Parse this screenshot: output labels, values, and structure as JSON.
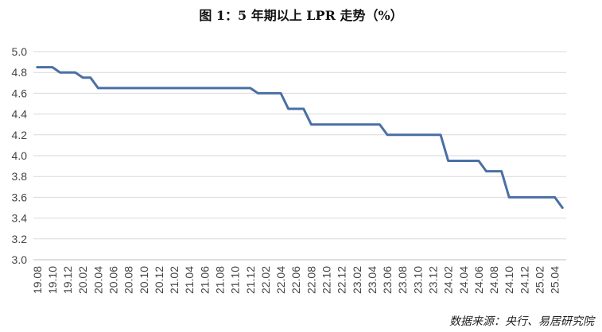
{
  "title": "图 1：5 年期以上 LPR 走势（%）",
  "source": "数据来源：央行、易居研究院",
  "colors": {
    "line": "#4A6FA5",
    "grid": "#D9D9D9",
    "axis": "#BFBFBF"
  },
  "chart_data": {
    "type": "line",
    "title": "图 1：5 年期以上 LPR 走势（%）",
    "xlabel": "",
    "ylabel": "",
    "ylim": [
      3.0,
      5.0
    ],
    "y_ticks": [
      "3.0",
      "3.2",
      "3.4",
      "3.6",
      "3.8",
      "4.0",
      "4.2",
      "4.4",
      "4.6",
      "4.8",
      "5.0"
    ],
    "grid": true,
    "legend": "none",
    "x": [
      "19.08",
      "19.09",
      "19.10",
      "19.11",
      "19.12",
      "20.01",
      "20.02",
      "20.03",
      "20.04",
      "20.05",
      "20.06",
      "20.07",
      "20.08",
      "20.09",
      "20.10",
      "20.11",
      "20.12",
      "21.01",
      "21.02",
      "21.03",
      "21.04",
      "21.05",
      "21.06",
      "21.07",
      "21.08",
      "21.09",
      "21.10",
      "21.11",
      "21.12",
      "22.01",
      "22.02",
      "22.03",
      "22.04",
      "22.05",
      "22.06",
      "22.07",
      "22.08",
      "22.09",
      "22.10",
      "22.11",
      "22.12",
      "23.01",
      "23.02",
      "23.03",
      "23.04",
      "23.05",
      "23.06",
      "23.07",
      "23.08",
      "23.09",
      "23.10",
      "23.11",
      "23.12",
      "24.01",
      "24.02",
      "24.03",
      "24.04",
      "24.05",
      "24.06",
      "24.07",
      "24.08",
      "24.09",
      "24.10",
      "24.11",
      "24.12",
      "25.01",
      "25.02",
      "25.03",
      "25.04",
      "25.05"
    ],
    "x_tick_labels": [
      "19.08",
      "19.10",
      "19.12",
      "20.02",
      "20.04",
      "20.06",
      "20.08",
      "20.10",
      "20.12",
      "21.02",
      "21.04",
      "21.06",
      "21.08",
      "21.10",
      "21.12",
      "22.02",
      "22.04",
      "22.06",
      "22.08",
      "22.10",
      "22.12",
      "23.02",
      "23.04",
      "23.06",
      "23.08",
      "23.10",
      "23.12",
      "24.02",
      "24.04",
      "24.06",
      "24.08",
      "24.10",
      "24.12",
      "25.02",
      "25.04"
    ],
    "series": [
      {
        "values": [
          4.85,
          4.85,
          4.85,
          4.8,
          4.8,
          4.8,
          4.75,
          4.75,
          4.65,
          4.65,
          4.65,
          4.65,
          4.65,
          4.65,
          4.65,
          4.65,
          4.65,
          4.65,
          4.65,
          4.65,
          4.65,
          4.65,
          4.65,
          4.65,
          4.65,
          4.65,
          4.65,
          4.65,
          4.65,
          4.6,
          4.6,
          4.6,
          4.6,
          4.45,
          4.45,
          4.45,
          4.3,
          4.3,
          4.3,
          4.3,
          4.3,
          4.3,
          4.3,
          4.3,
          4.3,
          4.3,
          4.2,
          4.2,
          4.2,
          4.2,
          4.2,
          4.2,
          4.2,
          4.2,
          3.95,
          3.95,
          3.95,
          3.95,
          3.95,
          3.85,
          3.85,
          3.85,
          3.6,
          3.6,
          3.6,
          3.6,
          3.6,
          3.6,
          3.6,
          3.5
        ]
      }
    ]
  }
}
